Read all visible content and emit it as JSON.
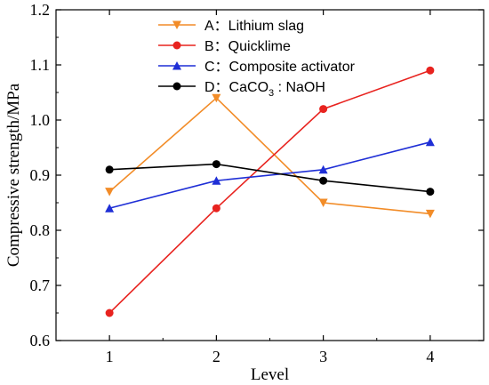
{
  "chart_data": {
    "type": "line",
    "xlabel": "Level",
    "ylabel": "Compressive strength/MPa",
    "x": [
      1,
      2,
      3,
      4
    ],
    "xlim": [
      0.5,
      4.5
    ],
    "ylim": [
      0.6,
      1.2
    ],
    "yticks": [
      "0.6",
      "0.7",
      "0.8",
      "0.9",
      "1.0",
      "1.1",
      "1.2"
    ],
    "xticks": [
      "1",
      "2",
      "3",
      "4"
    ],
    "grid": false,
    "legend_position": "top-center",
    "series": [
      {
        "name": "A：Lithium slag",
        "name_prefix": "A：Lithium slag",
        "name_sub": "",
        "name_suffix": "",
        "color": "#f28c28",
        "marker": "triangle-down",
        "values": [
          0.87,
          1.04,
          0.85,
          0.83
        ]
      },
      {
        "name": "B：Quicklime",
        "name_prefix": "B：Quicklime",
        "name_sub": "",
        "name_suffix": "",
        "color": "#e8231f",
        "marker": "circle",
        "values": [
          0.65,
          0.84,
          1.02,
          1.09
        ]
      },
      {
        "name": "C：Composite activator",
        "name_prefix": "C：Composite activator",
        "name_sub": "",
        "name_suffix": "",
        "color": "#1f2fd6",
        "marker": "triangle-up",
        "values": [
          0.84,
          0.89,
          0.91,
          0.96
        ]
      },
      {
        "name": "D：CaCO3 : NaOH",
        "name_prefix": "D：CaCO",
        "name_sub": "3",
        "name_suffix": " : NaOH",
        "color": "#000000",
        "marker": "circle",
        "values": [
          0.91,
          0.92,
          0.89,
          0.87
        ]
      }
    ]
  }
}
